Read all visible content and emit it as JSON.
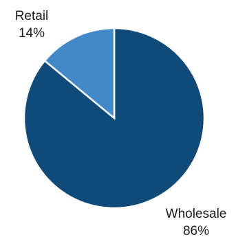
{
  "chart_data": {
    "type": "pie",
    "slices": [
      {
        "label": "Wholesale",
        "percent_label": "86%",
        "value": 86,
        "color": "#0f4a78"
      },
      {
        "label": "Retail",
        "percent_label": "14%",
        "value": 14,
        "color": "#4388c8"
      }
    ],
    "start_angle_deg": 0,
    "direction": "clockwise",
    "slice_border_color": "#ffffff",
    "legend": "none"
  }
}
